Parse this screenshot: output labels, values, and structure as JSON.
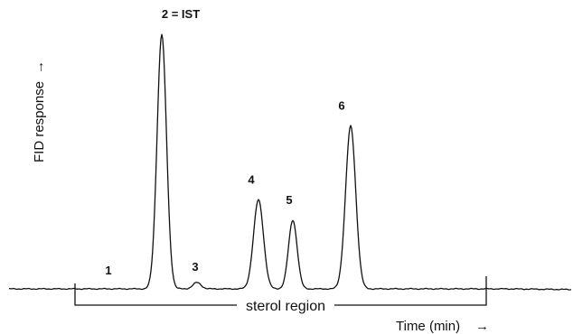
{
  "chart_data": {
    "type": "line",
    "title": "",
    "xlabel": "Time (min)",
    "ylabel": "FID response",
    "x_arrow": "→",
    "y_arrow": "→",
    "grid": false,
    "legend": "none",
    "line_color": "#111111",
    "baseline_response": 0,
    "peaks": [
      {
        "label": "1",
        "response": 0
      },
      {
        "label": "2 = IST",
        "response": 100
      },
      {
        "label": "3",
        "response": 2.5
      },
      {
        "label": "4",
        "response": 35
      },
      {
        "label": "5",
        "response": 27
      },
      {
        "label": "6",
        "response": 64
      }
    ],
    "annotations": [
      {
        "text": "sterol region",
        "type": "bracket"
      }
    ]
  }
}
